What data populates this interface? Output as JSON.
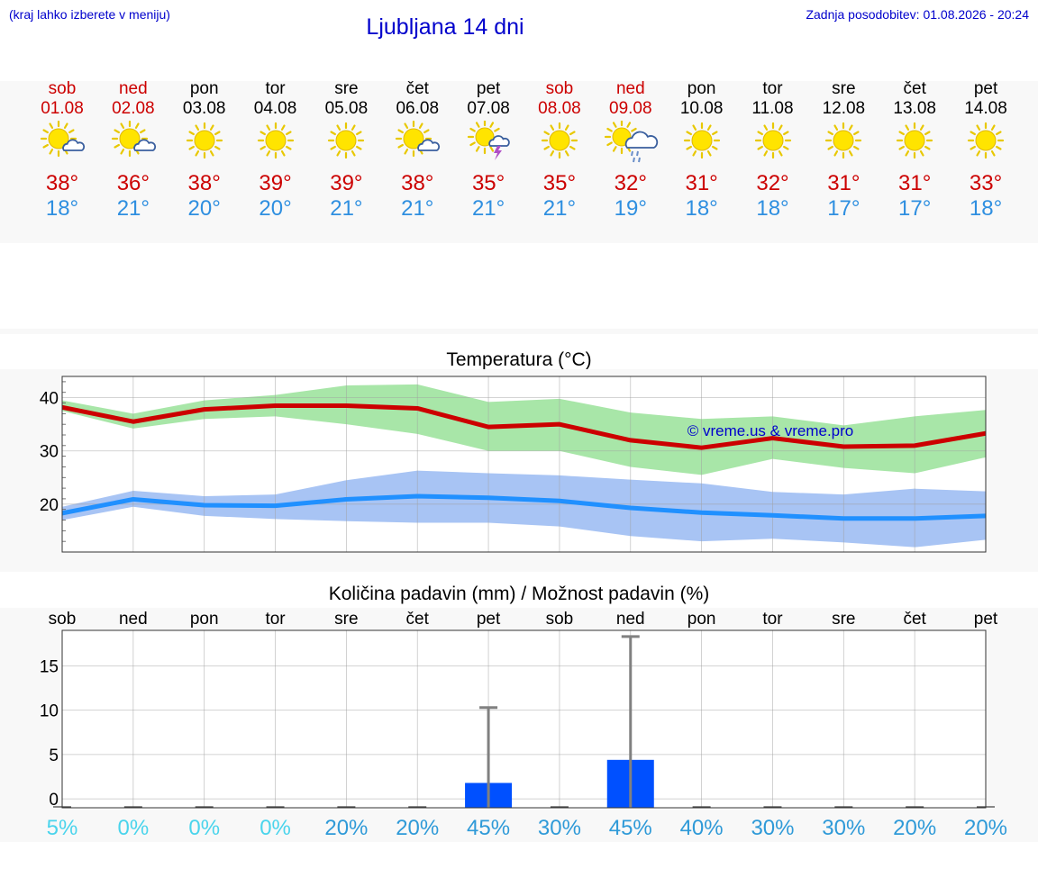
{
  "header": {
    "hint": "(kraj lahko izberete v meniju)",
    "title": "Ljubljana 14 dni",
    "updated": "Zadnja posodobitev: 01.08.2026 - 20:24"
  },
  "colors": {
    "weekend": "#cc0000",
    "max_temp": "#cc0000",
    "min_temp": "#2f8fe0",
    "max_band": "#a8e6a8",
    "min_band": "#a8c4f4",
    "precip_bar": "#0050ff",
    "error_bar": "#808080"
  },
  "days": [
    {
      "name": "sob",
      "date": "01.08",
      "weekend": true,
      "icon": "sun-cloud-icon",
      "max": "38°",
      "min": "18°"
    },
    {
      "name": "ned",
      "date": "02.08",
      "weekend": true,
      "icon": "sun-cloud-icon",
      "max": "36°",
      "min": "21°"
    },
    {
      "name": "pon",
      "date": "03.08",
      "weekend": false,
      "icon": "sun-icon",
      "max": "38°",
      "min": "20°"
    },
    {
      "name": "tor",
      "date": "04.08",
      "weekend": false,
      "icon": "sun-icon",
      "max": "39°",
      "min": "20°"
    },
    {
      "name": "sre",
      "date": "05.08",
      "weekend": false,
      "icon": "sun-icon",
      "max": "39°",
      "min": "21°"
    },
    {
      "name": "čet",
      "date": "06.08",
      "weekend": false,
      "icon": "sun-cloud-icon",
      "max": "38°",
      "min": "21°"
    },
    {
      "name": "pet",
      "date": "07.08",
      "weekend": false,
      "icon": "sun-storm-icon",
      "max": "35°",
      "min": "21°"
    },
    {
      "name": "sob",
      "date": "08.08",
      "weekend": true,
      "icon": "sun-icon",
      "max": "35°",
      "min": "21°"
    },
    {
      "name": "ned",
      "date": "09.08",
      "weekend": true,
      "icon": "sun-rain-cloud-icon",
      "max": "32°",
      "min": "19°"
    },
    {
      "name": "pon",
      "date": "10.08",
      "weekend": false,
      "icon": "sun-icon",
      "max": "31°",
      "min": "18°"
    },
    {
      "name": "tor",
      "date": "11.08",
      "weekend": false,
      "icon": "sun-icon",
      "max": "32°",
      "min": "18°"
    },
    {
      "name": "sre",
      "date": "12.08",
      "weekend": false,
      "icon": "sun-icon",
      "max": "31°",
      "min": "17°"
    },
    {
      "name": "čet",
      "date": "13.08",
      "weekend": false,
      "icon": "sun-icon",
      "max": "31°",
      "min": "17°"
    },
    {
      "name": "pet",
      "date": "14.08",
      "weekend": false,
      "icon": "sun-icon",
      "max": "33°",
      "min": "18°"
    }
  ],
  "chart_data": [
    {
      "type": "line",
      "title": "Temperatura (°C)",
      "watermark": "© vreme.us & vreme.pro",
      "ylim": [
        11,
        44
      ],
      "yticks": [
        20,
        30,
        40
      ],
      "grid": true,
      "x": [
        0,
        1,
        2,
        3,
        4,
        5,
        6,
        7,
        8,
        9,
        10,
        11,
        12,
        13
      ],
      "series": [
        {
          "role": "max",
          "values": [
            38.2,
            35.5,
            37.8,
            38.5,
            38.5,
            38.0,
            34.5,
            35.0,
            32.0,
            30.6,
            32.4,
            30.8,
            31.0,
            33.3
          ],
          "band_low": [
            37.5,
            34.2,
            36.0,
            36.5,
            35.0,
            33.2,
            30.0,
            30.0,
            27.0,
            25.5,
            28.5,
            26.8,
            25.8,
            28.8
          ],
          "band_high": [
            39.5,
            37.0,
            39.5,
            40.5,
            42.3,
            42.5,
            39.2,
            39.8,
            37.2,
            36.0,
            36.5,
            34.8,
            36.5,
            37.7
          ]
        },
        {
          "role": "min",
          "values": [
            18.3,
            20.9,
            19.8,
            19.7,
            20.9,
            21.5,
            21.2,
            20.6,
            19.3,
            18.4,
            17.9,
            17.3,
            17.3,
            17.8
          ],
          "band_low": [
            17.0,
            19.5,
            17.8,
            17.2,
            16.8,
            16.5,
            16.5,
            15.8,
            14.0,
            13.0,
            13.5,
            12.8,
            11.9,
            13.3
          ],
          "band_high": [
            19.5,
            22.5,
            21.5,
            21.8,
            24.5,
            26.3,
            25.8,
            25.4,
            24.6,
            23.9,
            22.3,
            21.8,
            22.9,
            22.4
          ]
        }
      ]
    },
    {
      "type": "bar",
      "title": "Količina padavin (mm) / Možnost padavin (%)",
      "ylim": [
        -1,
        19
      ],
      "yticks": [
        0,
        5,
        10,
        15
      ],
      "grid": true,
      "categories": [
        "sob",
        "ned",
        "pon",
        "tor",
        "sre",
        "čet",
        "pet",
        "sob",
        "ned",
        "pon",
        "tor",
        "sre",
        "čet",
        "pet"
      ],
      "values": [
        0,
        0,
        0,
        0,
        0,
        0,
        1.8,
        0,
        4.4,
        0,
        0,
        0,
        0,
        0
      ],
      "error_high": [
        0,
        0,
        0,
        0,
        0,
        0,
        10.3,
        0,
        18.3,
        0,
        0,
        0,
        0,
        0
      ],
      "probability": [
        "5%",
        "0%",
        "0%",
        "0%",
        "20%",
        "20%",
        "45%",
        "30%",
        "45%",
        "40%",
        "30%",
        "30%",
        "20%",
        "20%"
      ],
      "probability_colors": [
        "#4ad4ec",
        "#4ad4ec",
        "#4ad4ec",
        "#4ad4ec",
        "#2f9ad8",
        "#2f9ad8",
        "#2f9ad8",
        "#2f9ad8",
        "#2f9ad8",
        "#2f9ad8",
        "#2f9ad8",
        "#2f9ad8",
        "#2f9ad8",
        "#2f9ad8"
      ]
    }
  ]
}
